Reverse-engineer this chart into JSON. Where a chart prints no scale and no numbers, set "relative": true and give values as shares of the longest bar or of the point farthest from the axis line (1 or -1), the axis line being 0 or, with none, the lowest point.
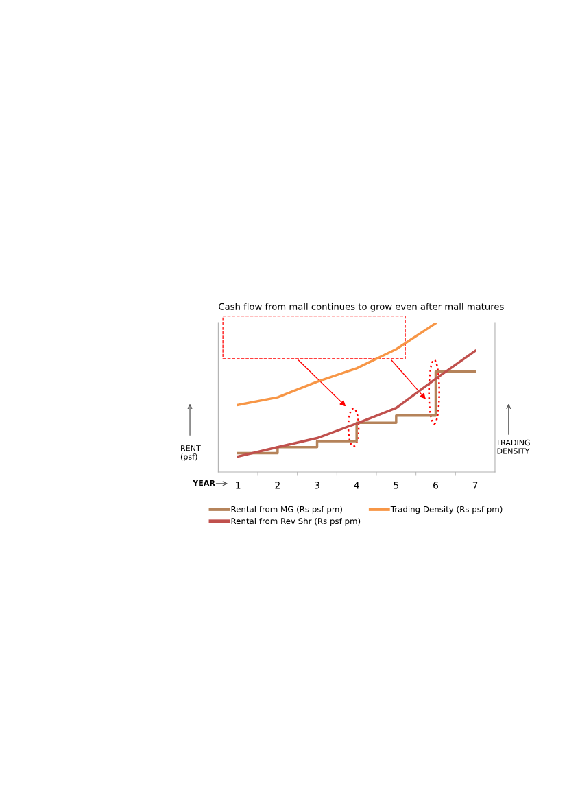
{
  "chart_data": {
    "type": "line",
    "title": "Cash flow from mall continues to grow even after mall matures",
    "xlabel": "YEAR",
    "ylabel": "RENT\n(psf)",
    "y2label": "TRADING\nDENSITY",
    "categories": [
      "1",
      "2",
      "3",
      "4",
      "5",
      "6",
      "7"
    ],
    "relative": true,
    "series": [
      {
        "name": "Rental from MG (Rs psf pm)",
        "type": "step",
        "color": "#b5835a",
        "values": [
          0.127,
          0.167,
          0.207,
          0.331,
          0.379,
          0.674,
          0.674
        ]
      },
      {
        "name": "Rental from Rev Shr (Rs psf pm)",
        "color": "#c0504d",
        "values": [
          0.104,
          0.167,
          0.228,
          0.326,
          0.43,
          0.626,
          0.814
        ]
      },
      {
        "name": "Trading Density (Rs psf pm)",
        "color": "#f79646",
        "values": [
          0.451,
          0.502,
          0.607,
          0.697,
          0.825,
          1.0,
          null
        ]
      }
    ],
    "legend": "bottom",
    "grid": false,
    "marker": "none",
    "line_style": "solid"
  }
}
